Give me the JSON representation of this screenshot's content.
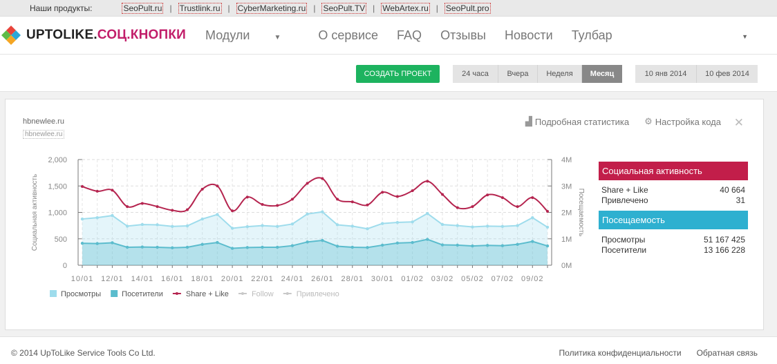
{
  "topbar": {
    "label": "Наши продукты:",
    "products": [
      "SeoPult.ru",
      "Trustlink.ru",
      "CyberMarketing.ru",
      "SeoPult.TV",
      "WebArtex.ru",
      "SeoPult.pro"
    ]
  },
  "logo": {
    "part1": "UPTOLIKE.",
    "part2": "СОЦ.КНОПКИ"
  },
  "nav": [
    "Модули",
    "О сервисе",
    "FAQ",
    "Отзывы",
    "Новости",
    "Тулбар"
  ],
  "toolbar": {
    "create_label": "СОЗДАТЬ ПРОЕКТ",
    "periods": [
      "24 часа",
      "Вчера",
      "Неделя",
      "Месяц"
    ],
    "active_period": "Месяц",
    "date_from": "10 янв 2014",
    "date_to": "10 фев 2014"
  },
  "panel": {
    "site_name": "hbnewlee.ru",
    "site_sub": "hbnewlee.ru",
    "detailed_stats": "Подробная статистика",
    "code_settings": "Настройка кода"
  },
  "chart_data": {
    "type": "line",
    "x": [
      "10/01",
      "11/01",
      "12/01",
      "13/01",
      "14/01",
      "15/01",
      "16/01",
      "17/01",
      "18/01",
      "19/01",
      "20/01",
      "21/01",
      "22/01",
      "23/01",
      "24/01",
      "25/01",
      "26/01",
      "27/01",
      "28/01",
      "29/01",
      "30/01",
      "31/01",
      "01/02",
      "02/02",
      "03/02",
      "04/02",
      "05/02",
      "06/02",
      "07/02",
      "08/02",
      "09/02",
      "10/02"
    ],
    "x_ticks": [
      "10/01",
      "12/01",
      "14/01",
      "16/01",
      "18/01",
      "20/01",
      "22/01",
      "24/01",
      "26/01",
      "28/01",
      "30/01",
      "01/02",
      "03/02",
      "05/02",
      "07/02",
      "09/02"
    ],
    "ylabel": "Социальная активность",
    "y2label": "Посещаемость",
    "ylim": [
      0,
      2000
    ],
    "y_ticks": [
      "0",
      "500",
      "1,000",
      "1,500",
      "2,000"
    ],
    "y2lim": [
      0,
      4000000
    ],
    "y2_ticks": [
      "0M",
      "1M",
      "2M",
      "3M",
      "4M"
    ],
    "series": [
      {
        "name": "Просмотры",
        "axis": "right",
        "color": "#9edcec",
        "values": [
          1750000,
          1800000,
          1880000,
          1480000,
          1540000,
          1530000,
          1470000,
          1490000,
          1750000,
          1920000,
          1400000,
          1460000,
          1500000,
          1470000,
          1560000,
          1940000,
          2020000,
          1530000,
          1480000,
          1380000,
          1580000,
          1620000,
          1640000,
          1960000,
          1540000,
          1500000,
          1450000,
          1480000,
          1470000,
          1500000,
          1800000,
          1440000
        ]
      },
      {
        "name": "Посетители",
        "axis": "right",
        "color": "#5bbccd",
        "values": [
          830000,
          820000,
          850000,
          680000,
          690000,
          680000,
          660000,
          680000,
          790000,
          860000,
          640000,
          670000,
          680000,
          680000,
          740000,
          880000,
          940000,
          720000,
          680000,
          670000,
          760000,
          840000,
          860000,
          980000,
          770000,
          760000,
          730000,
          750000,
          740000,
          790000,
          900000,
          730000
        ]
      },
      {
        "name": "Share + Like",
        "axis": "left",
        "color": "#b5244f",
        "values": [
          1490,
          1400,
          1420,
          1110,
          1170,
          1110,
          1040,
          1050,
          1440,
          1500,
          1030,
          1290,
          1150,
          1130,
          1250,
          1550,
          1640,
          1250,
          1200,
          1140,
          1380,
          1300,
          1410,
          1590,
          1340,
          1090,
          1110,
          1330,
          1280,
          1110,
          1280,
          1020
        ]
      }
    ],
    "legend": [
      {
        "name": "Просмотры",
        "color": "#9edcec",
        "style": "square"
      },
      {
        "name": "Посетители",
        "color": "#5bbccd",
        "style": "square"
      },
      {
        "name": "Share + Like",
        "color": "#b5244f",
        "style": "line"
      },
      {
        "name": "Follow",
        "color": "#c8c8c8",
        "style": "line"
      },
      {
        "name": "Привлечено",
        "color": "#c8c8c8",
        "style": "line"
      }
    ],
    "grid": true,
    "legend_position": "bottom-left"
  },
  "stats": {
    "social": {
      "title": "Социальная активность",
      "rows": [
        {
          "label": "Share + Like",
          "value": "40 664"
        },
        {
          "label": "Привлечено",
          "value": "31"
        }
      ]
    },
    "traffic": {
      "title": "Посещаемость",
      "rows": [
        {
          "label": "Просмотры",
          "value": "51 167 425"
        },
        {
          "label": "Посетители",
          "value": "13 166 228"
        }
      ]
    }
  },
  "footer": {
    "copyright": "© 2014 UpToLike Service Tools Co Ltd.",
    "privacy": "Политика конфиденциальности",
    "feedback": "Обратная связь"
  }
}
